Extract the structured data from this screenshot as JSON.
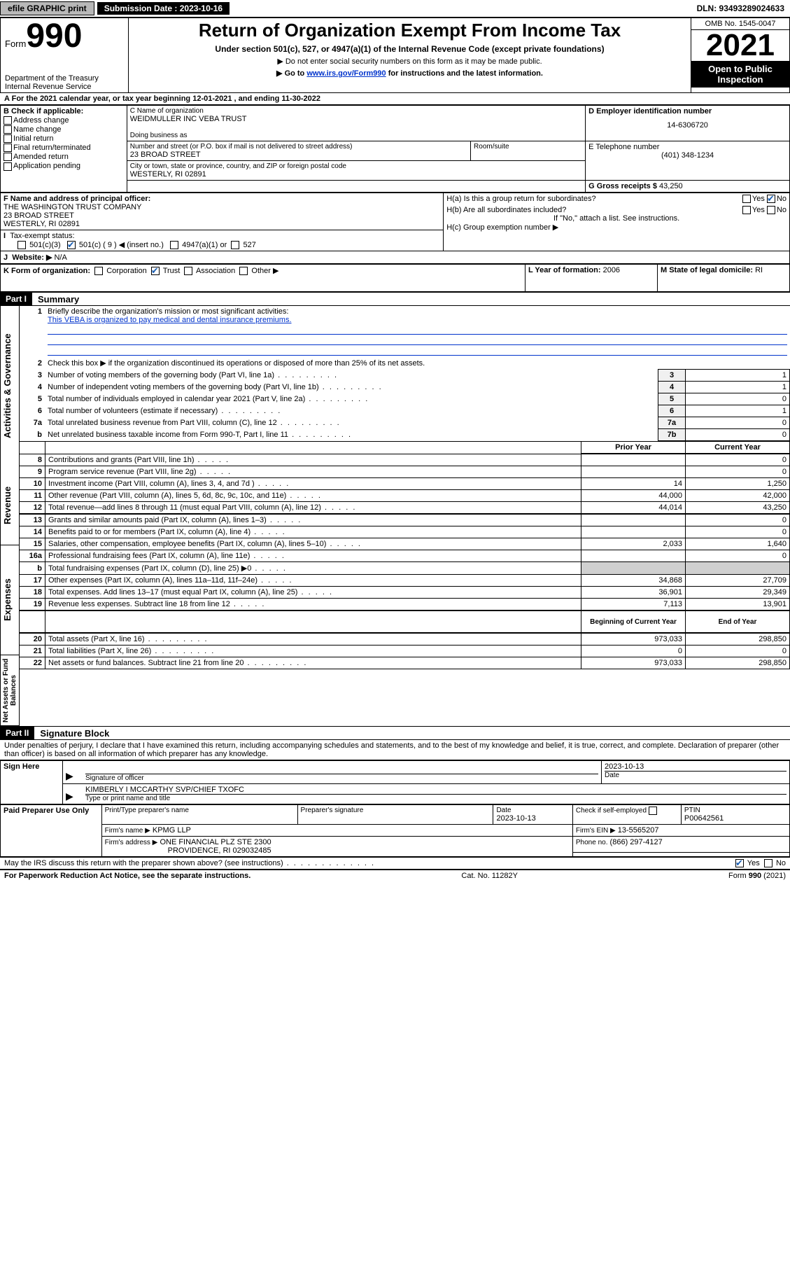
{
  "top_bar": {
    "efile": "efile GRAPHIC print",
    "submission_label": "Submission Date :",
    "submission_date": "2023-10-16",
    "dln": "DLN: 93493289024633"
  },
  "header": {
    "form_word": "Form",
    "form_number": "990",
    "dept": "Department of the Treasury Internal Revenue Service",
    "title": "Return of Organization Exempt From Income Tax",
    "sub1": "Under section 501(c), 527, or 4947(a)(1) of the Internal Revenue Code (except private foundations)",
    "sub2": "▶ Do not enter social security numbers on this form as it may be made public.",
    "sub3_pre": "▶ Go to ",
    "sub3_link": "www.irs.gov/Form990",
    "sub3_post": " for instructions and the latest information.",
    "omb": "OMB No. 1545-0047",
    "year": "2021",
    "open_public": "Open to Public Inspection"
  },
  "section_a": {
    "line_a": "For the 2021 calendar year, or tax year beginning 12-01-2021     , and ending 11-30-2022",
    "b_label": "B Check if applicable:",
    "b_items": [
      "Address change",
      "Name change",
      "Initial return",
      "Final return/terminated",
      "Amended return",
      "Application pending"
    ],
    "c_label": "C Name of organization",
    "c_name": "WEIDMULLER INC VEBA TRUST",
    "dba_label": "Doing business as",
    "street_label": "Number and street (or P.O. box if mail is not delivered to street address)",
    "room_label": "Room/suite",
    "street": "23 BROAD STREET",
    "city_label": "City or town, state or province, country, and ZIP or foreign postal code",
    "city": "WESTERLY, RI  02891",
    "d_label": "D Employer identification number",
    "d_ein": "14-6306720",
    "e_label": "E Telephone number",
    "e_phone": "(401) 348-1234",
    "g_label": "G Gross receipts $",
    "g_amount": "43,250",
    "f_label": "F Name and address of principal officer:",
    "f_name": "THE WASHINGTON TRUST COMPANY",
    "f_street": "23 BROAD STREET",
    "f_city": "WESTERLY, RI  02891",
    "h_a": "H(a)  Is this a group return for subordinates?",
    "h_b": "H(b)  Are all subordinates included?",
    "h_b_note": "If \"No,\" attach a list. See instructions.",
    "h_c": "H(c)  Group exemption number ▶",
    "yes": "Yes",
    "no": "No",
    "i_label": "Tax-exempt status:",
    "i_501c3": "501(c)(3)",
    "i_501c": "501(c) ( 9 ) ◀ (insert no.)",
    "i_4947": "4947(a)(1) or",
    "i_527": "527",
    "j_label": "Website: ▶",
    "j_value": "N/A",
    "k_label": "K Form of organization:",
    "k_items": [
      "Corporation",
      "Trust",
      "Association",
      "Other ▶"
    ],
    "l_label": "L Year of formation:",
    "l_value": "2006",
    "m_label": "M State of legal domicile:",
    "m_value": "RI"
  },
  "part1": {
    "header": "Part I",
    "title": "Summary",
    "vert_labels": {
      "ag": "Activities & Governance",
      "rev": "Revenue",
      "exp": "Expenses",
      "na": "Net Assets or Fund Balances"
    },
    "line1": "Briefly describe the organization's mission or most significant activities:",
    "mission": "This VEBA is organized to pay medical and dental insurance premiums.",
    "line2": "Check this box ▶       if the organization discontinued its operations or disposed of more than 25% of its net assets.",
    "rows_top": [
      {
        "n": "3",
        "t": "Number of voting members of the governing body (Part VI, line 1a)",
        "box": "3",
        "v": "1"
      },
      {
        "n": "4",
        "t": "Number of independent voting members of the governing body (Part VI, line 1b)",
        "box": "4",
        "v": "1"
      },
      {
        "n": "5",
        "t": "Total number of individuals employed in calendar year 2021 (Part V, line 2a)",
        "box": "5",
        "v": "0"
      },
      {
        "n": "6",
        "t": "Total number of volunteers (estimate if necessary)",
        "box": "6",
        "v": "1"
      },
      {
        "n": "7a",
        "t": "Total unrelated business revenue from Part VIII, column (C), line 12",
        "box": "7a",
        "v": "0"
      },
      {
        "n": "b",
        "t": "Net unrelated business taxable income from Form 990-T, Part I, line 11",
        "box": "7b",
        "v": "0"
      }
    ],
    "col_headers": {
      "prior": "Prior Year",
      "current": "Current Year",
      "boy": "Beginning of Current Year",
      "eoy": "End of Year"
    },
    "revenue": [
      {
        "n": "8",
        "t": "Contributions and grants (Part VIII, line 1h)",
        "p": "",
        "c": "0"
      },
      {
        "n": "9",
        "t": "Program service revenue (Part VIII, line 2g)",
        "p": "",
        "c": "0"
      },
      {
        "n": "10",
        "t": "Investment income (Part VIII, column (A), lines 3, 4, and 7d )",
        "p": "14",
        "c": "1,250"
      },
      {
        "n": "11",
        "t": "Other revenue (Part VIII, column (A), lines 5, 6d, 8c, 9c, 10c, and 11e)",
        "p": "44,000",
        "c": "42,000"
      },
      {
        "n": "12",
        "t": "Total revenue—add lines 8 through 11 (must equal Part VIII, column (A), line 12)",
        "p": "44,014",
        "c": "43,250"
      }
    ],
    "expenses": [
      {
        "n": "13",
        "t": "Grants and similar amounts paid (Part IX, column (A), lines 1–3)",
        "p": "",
        "c": "0"
      },
      {
        "n": "14",
        "t": "Benefits paid to or for members (Part IX, column (A), line 4)",
        "p": "",
        "c": "0"
      },
      {
        "n": "15",
        "t": "Salaries, other compensation, employee benefits (Part IX, column (A), lines 5–10)",
        "p": "2,033",
        "c": "1,640"
      },
      {
        "n": "16a",
        "t": "Professional fundraising fees (Part IX, column (A), line 11e)",
        "p": "",
        "c": "0"
      },
      {
        "n": "b",
        "t": "Total fundraising expenses (Part IX, column (D), line 25) ▶0",
        "p": "shaded",
        "c": "shaded"
      },
      {
        "n": "17",
        "t": "Other expenses (Part IX, column (A), lines 11a–11d, 11f–24e)",
        "p": "34,868",
        "c": "27,709"
      },
      {
        "n": "18",
        "t": "Total expenses. Add lines 13–17 (must equal Part IX, column (A), line 25)",
        "p": "36,901",
        "c": "29,349"
      },
      {
        "n": "19",
        "t": "Revenue less expenses. Subtract line 18 from line 12",
        "p": "7,113",
        "c": "13,901"
      }
    ],
    "net_assets": [
      {
        "n": "20",
        "t": "Total assets (Part X, line 16)",
        "p": "973,033",
        "c": "298,850"
      },
      {
        "n": "21",
        "t": "Total liabilities (Part X, line 26)",
        "p": "0",
        "c": "0"
      },
      {
        "n": "22",
        "t": "Net assets or fund balances. Subtract line 21 from line 20",
        "p": "973,033",
        "c": "298,850"
      }
    ]
  },
  "part2": {
    "header": "Part II",
    "title": "Signature Block",
    "declaration": "Under penalties of perjury, I declare that I have examined this return, including accompanying schedules and statements, and to the best of my knowledge and belief, it is true, correct, and complete. Declaration of preparer (other than officer) is based on all information of which preparer has any knowledge.",
    "sign_here": "Sign Here",
    "sig_officer": "Signature of officer",
    "sig_date": "2023-10-13",
    "date_label": "Date",
    "officer_name": "KIMBERLY I MCCARTHY SVP/CHIEF TXOFC",
    "type_name": "Type or print name and title",
    "paid_prep": "Paid Preparer Use Only",
    "prep_name_label": "Print/Type preparer's name",
    "prep_sig_label": "Preparer's signature",
    "prep_date": "2023-10-13",
    "check_self": "Check        if self-employed",
    "ptin_label": "PTIN",
    "ptin": "P00642561",
    "firm_name_label": "Firm's name    ▶",
    "firm_name": "KPMG LLP",
    "firm_ein_label": "Firm's EIN ▶",
    "firm_ein": "13-5565207",
    "firm_addr_label": "Firm's address ▶",
    "firm_addr1": "ONE FINANCIAL PLZ STE 2300",
    "firm_addr2": "PROVIDENCE, RI  029032485",
    "phone_label": "Phone no.",
    "phone": "(866) 297-4127",
    "may_irs": "May the IRS discuss this return with the preparer shown above? (see instructions)"
  },
  "footer": {
    "left": "For Paperwork Reduction Act Notice, see the separate instructions.",
    "center": "Cat. No. 11282Y",
    "right": "Form 990 (2021)"
  }
}
